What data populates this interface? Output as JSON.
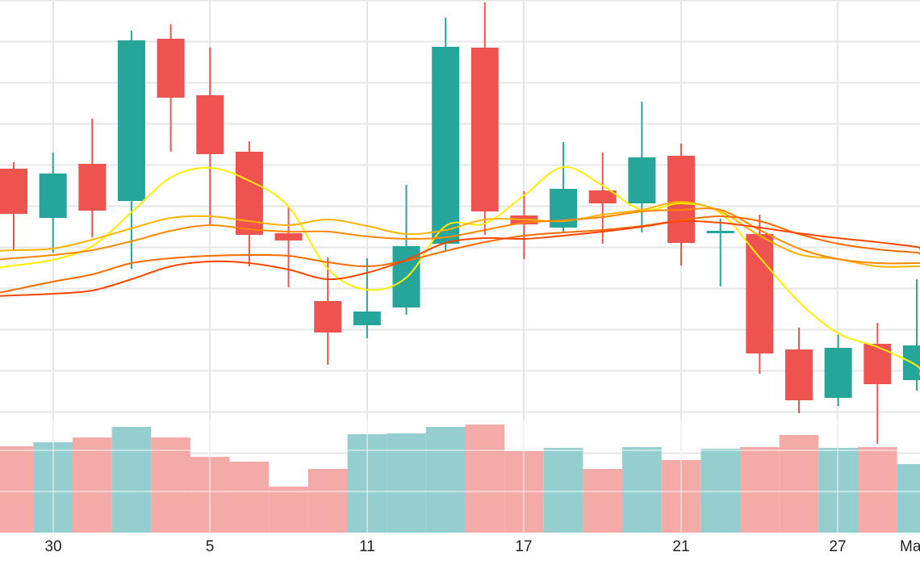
{
  "chart_data": {
    "type": "candlestick",
    "x_tick_labels": [
      "30",
      "5",
      "11",
      "17",
      "21",
      "27",
      "Ma"
    ],
    "price_ylim": [
      0,
      660
    ],
    "volume_ylim": [
      0,
      140
    ],
    "grid": true,
    "colors": {
      "up": "#26a69a",
      "down": "#ef5350",
      "volume_up": "#95cecf",
      "volume_down": "#f4aaa7",
      "grid": "#e6e6e6",
      "ma_5": "#ffee00",
      "ma_10": "#ffb300",
      "ma_20": "#ff8800",
      "ma_30": "#ff6a00",
      "ma_60": "#ff4500"
    },
    "candles": [
      {
        "open": 451,
        "close": 395,
        "high": 459,
        "low": 349,
        "volume": 107
      },
      {
        "open": 390,
        "close": 445,
        "high": 471,
        "low": 347,
        "volume": 112
      },
      {
        "open": 457,
        "close": 399,
        "high": 513,
        "low": 366,
        "volume": 118
      },
      {
        "open": 411,
        "close": 610,
        "high": 622,
        "low": 327,
        "volume": 131
      },
      {
        "open": 612,
        "close": 539,
        "high": 630,
        "low": 472,
        "volume": 118
      },
      {
        "open": 542,
        "close": 469,
        "high": 601,
        "low": 382,
        "volume": 94
      },
      {
        "open": 472,
        "close": 369,
        "high": 485,
        "low": 330,
        "volume": 88
      },
      {
        "open": 371,
        "close": 362,
        "high": 404,
        "low": 304,
        "volume": 57
      },
      {
        "open": 287,
        "close": 248,
        "high": 341,
        "low": 208,
        "volume": 79
      },
      {
        "open": 257,
        "close": 274,
        "high": 340,
        "low": 241,
        "volume": 122
      },
      {
        "open": 279,
        "close": 355,
        "high": 431,
        "low": 270,
        "volume": 123
      },
      {
        "open": 358,
        "close": 602,
        "high": 638,
        "low": 349,
        "volume": 131
      },
      {
        "open": 601,
        "close": 398,
        "high": 657,
        "low": 369,
        "volume": 134
      },
      {
        "open": 393,
        "close": 382,
        "high": 423,
        "low": 339,
        "volume": 101
      },
      {
        "open": 378,
        "close": 426,
        "high": 484,
        "low": 373,
        "volume": 105
      },
      {
        "open": 424,
        "close": 408,
        "high": 471,
        "low": 358,
        "volume": 79
      },
      {
        "open": 408,
        "close": 465,
        "high": 534,
        "low": 372,
        "volume": 106
      },
      {
        "open": 467,
        "close": 359,
        "high": 482,
        "low": 331,
        "volume": 90
      },
      {
        "open": 374,
        "close": 374,
        "high": 389,
        "low": 305,
        "volume": 104
      },
      {
        "open": 370,
        "close": 222,
        "high": 394,
        "low": 197,
        "volume": 106
      },
      {
        "open": 227,
        "close": 164,
        "high": 254,
        "low": 148,
        "volume": 121
      },
      {
        "open": 167,
        "close": 229,
        "high": 245,
        "low": 157,
        "volume": 105
      },
      {
        "open": 234,
        "close": 184,
        "high": 260,
        "low": 110,
        "volume": 106
      },
      {
        "open": 189,
        "close": 232,
        "high": 314,
        "low": 176,
        "volume": 85
      }
    ],
    "moving_averages": [
      {
        "key": "ma_5",
        "values": [
          331,
          338,
          355,
          397,
          440,
          452,
          436,
          404,
          327,
          301,
          316,
          380,
          383,
          418,
          453,
          430,
          400,
          408,
          396,
          341,
          286,
          247,
          230,
          207
        ]
      },
      {
        "key": "ma_10",
        "values": [
          350,
          352,
          363,
          377,
          390,
          392,
          386,
          381,
          388,
          380,
          370,
          375,
          388,
          388,
          386,
          394,
          400,
          410,
          398,
          368,
          345,
          339,
          330,
          330
        ]
      },
      {
        "key": "ma_20",
        "values": [
          340,
          344,
          350,
          361,
          374,
          381,
          376,
          373,
          373,
          367,
          364,
          366,
          375,
          384,
          387,
          391,
          398,
          400,
          400,
          375,
          352,
          339,
          334,
          334
        ]
      },
      {
        "key": "ma_30",
        "values": [
          301,
          311,
          320,
          334,
          340,
          343,
          344,
          343,
          335,
          330,
          337,
          349,
          360,
          368,
          372,
          375,
          380,
          387,
          392,
          386,
          370,
          358,
          351,
          347
        ]
      },
      {
        "key": "ma_60",
        "values": [
          294,
          296,
          300,
          314,
          330,
          336,
          334,
          326,
          314,
          322,
          338,
          359,
          365,
          364,
          368,
          373,
          379,
          386,
          384,
          378,
          371,
          365,
          360,
          354
        ]
      }
    ]
  }
}
